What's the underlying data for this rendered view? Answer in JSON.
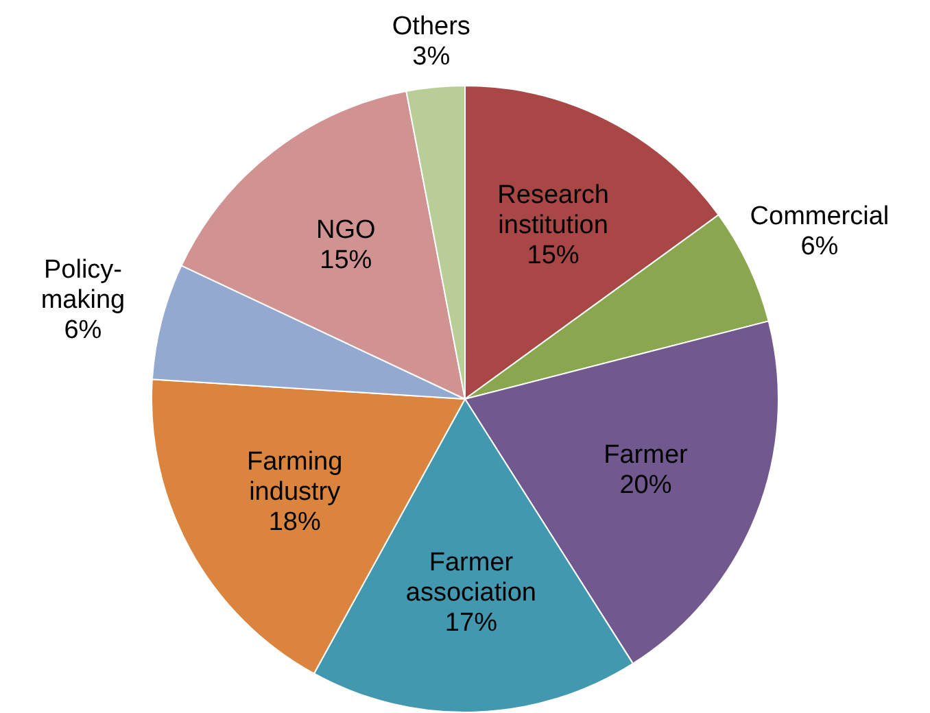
{
  "chart_data": {
    "type": "pie",
    "categories": [
      "Research institution",
      "Commercial",
      "Farmer",
      "Farmer association",
      "Farming industry",
      "Policy-making",
      "NGO",
      "Others"
    ],
    "values": [
      15,
      6,
      20,
      17,
      18,
      6,
      15,
      3
    ],
    "value_labels": [
      "15%",
      "6%",
      "20%",
      "17%",
      "18%",
      "6%",
      "15%",
      "3%"
    ],
    "colors": [
      "#a94646",
      "#8aa64e",
      "#71588f",
      "#4198af",
      "#db843d",
      "#93a9cf",
      "#d09392",
      "#b9cd96"
    ],
    "legend": false
  }
}
